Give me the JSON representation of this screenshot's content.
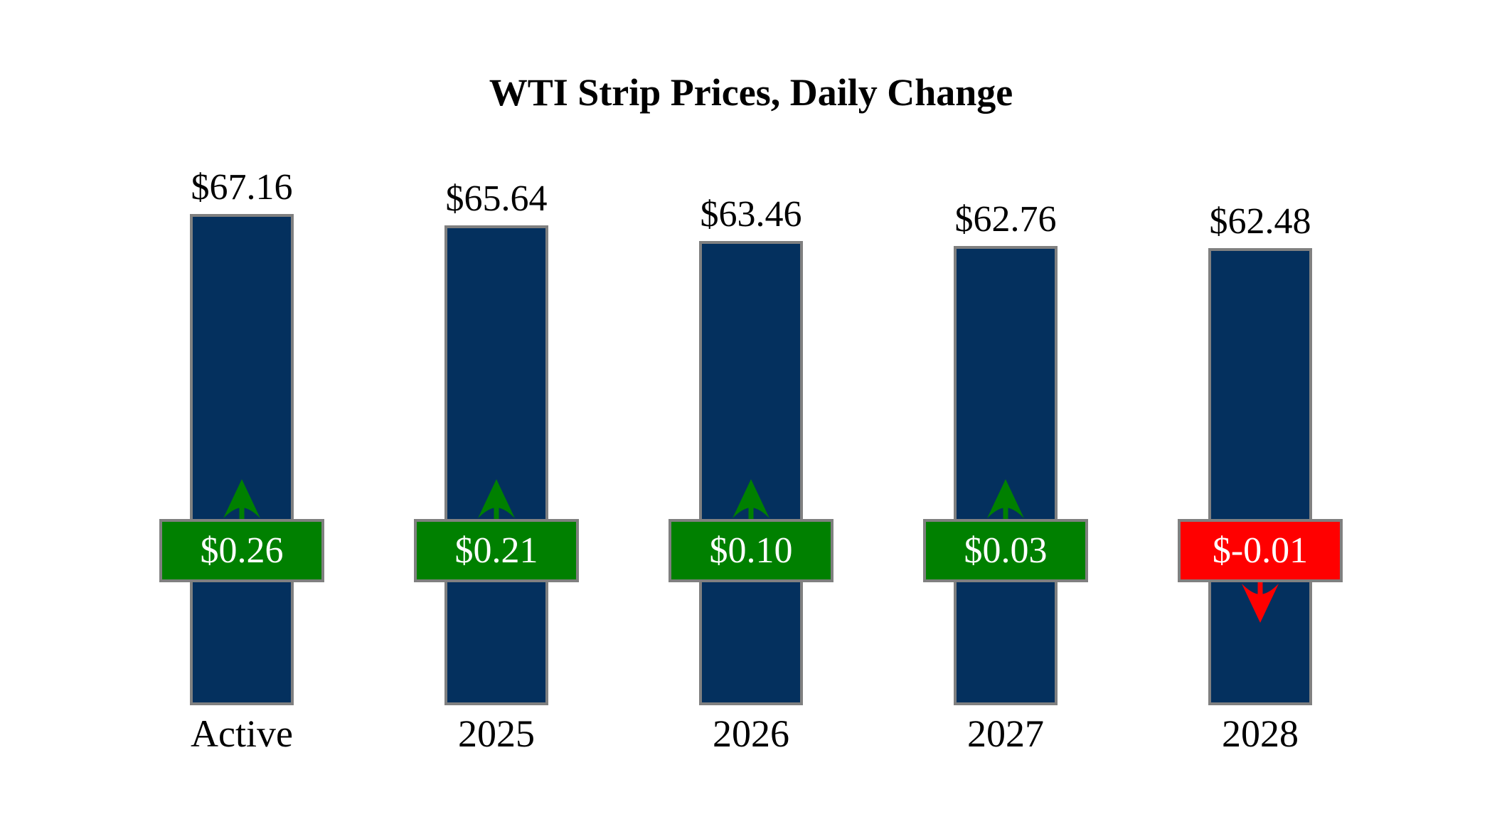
{
  "title": "WTI Strip Prices, Daily Change",
  "chart_data": {
    "type": "bar",
    "title": "WTI Strip Prices, Daily Change",
    "categories": [
      "Active",
      "2025",
      "2026",
      "2027",
      "2028"
    ],
    "series": [
      {
        "name": "Strip Price",
        "values": [
          67.16,
          65.64,
          63.46,
          62.76,
          62.48
        ]
      },
      {
        "name": "Daily Change",
        "values": [
          0.26,
          0.21,
          0.1,
          0.03,
          -0.01
        ]
      }
    ],
    "bars": [
      {
        "category": "Active",
        "price": 67.16,
        "price_label": "$67.16",
        "change": 0.26,
        "change_label": "$0.26",
        "direction": "up"
      },
      {
        "category": "2025",
        "price": 65.64,
        "price_label": "$65.64",
        "change": 0.21,
        "change_label": "$0.21",
        "direction": "up"
      },
      {
        "category": "2026",
        "price": 63.46,
        "price_label": "$63.46",
        "change": 0.1,
        "change_label": "$0.10",
        "direction": "up"
      },
      {
        "category": "2027",
        "price": 62.76,
        "price_label": "$62.76",
        "change": 0.03,
        "change_label": "$0.03",
        "direction": "up"
      },
      {
        "category": "2028",
        "price": 62.48,
        "price_label": "$62.48",
        "change": -0.01,
        "change_label": "$-0.01",
        "direction": "down"
      }
    ],
    "xlabel": "",
    "ylabel": "",
    "ylim": [
      0,
      70
    ],
    "grid": false,
    "legend": false,
    "colors": {
      "bar_fill": "#04305E",
      "bar_border": "#808080",
      "up": "#008000",
      "down": "#FF0000",
      "badge_border": "#808080",
      "badge_text": "#FFFFFF",
      "label_text": "#000000",
      "background": "#FFFFFF"
    }
  }
}
